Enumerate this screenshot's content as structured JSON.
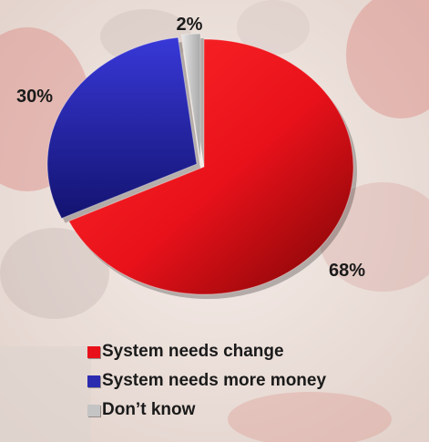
{
  "chart_data": {
    "type": "pie",
    "categories": [
      "System needs change",
      "System needs more money",
      "Don’t know"
    ],
    "values": [
      68,
      30,
      2
    ],
    "data_labels": [
      "68%",
      "30%",
      "2%"
    ],
    "colors": [
      "#e8111a",
      "#2b2bb0",
      "#c4c4c4"
    ],
    "title": "",
    "legend_position": "bottom",
    "style": "3d"
  }
}
